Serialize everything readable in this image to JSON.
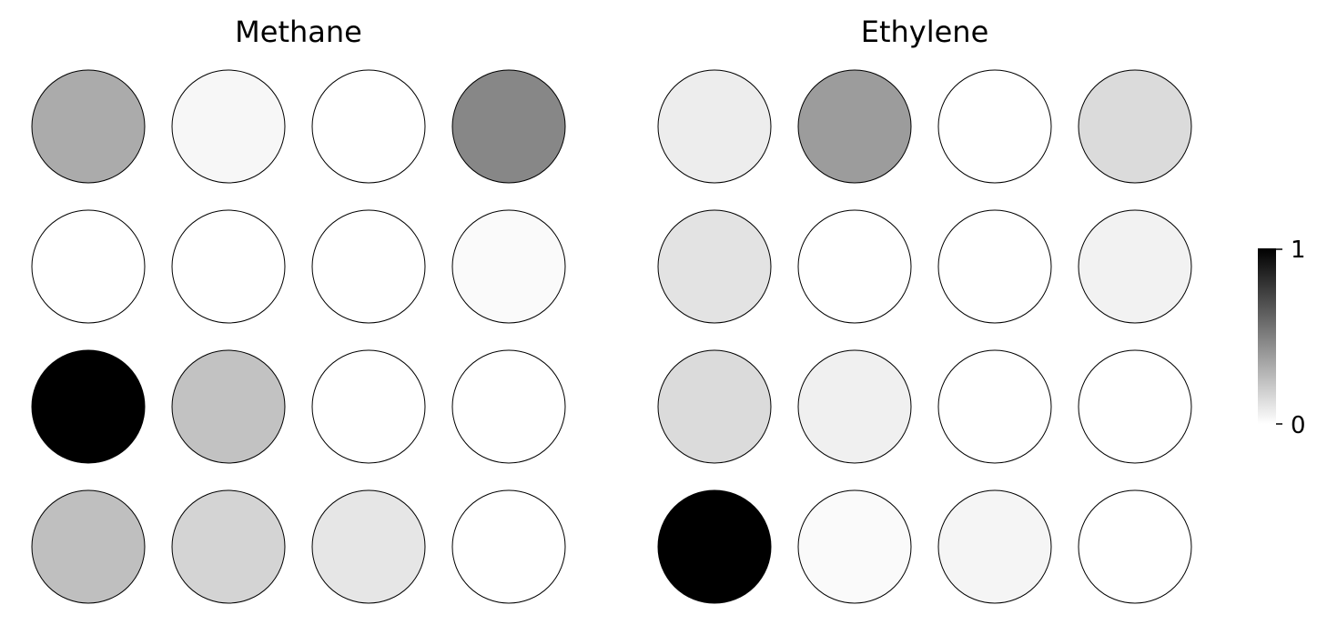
{
  "chart_data": {
    "type": "heatmap",
    "colormap": "greys",
    "colorbar": {
      "min": 0,
      "max": 1,
      "ticks": [
        0,
        1
      ],
      "tick_labels": [
        "0",
        "1"
      ],
      "colors": {
        "low": "#ffffff",
        "high": "#000000"
      }
    },
    "panels": [
      {
        "title": "Methane",
        "rows": 4,
        "cols": 4,
        "values": [
          [
            0.33,
            0.03,
            0.0,
            0.47
          ],
          [
            0.0,
            0.0,
            0.0,
            0.02
          ],
          [
            1.0,
            0.24,
            0.0,
            0.0
          ],
          [
            0.25,
            0.17,
            0.1,
            0.0
          ]
        ]
      },
      {
        "title": "Ethylene",
        "rows": 4,
        "cols": 4,
        "values": [
          [
            0.07,
            0.39,
            0.0,
            0.14
          ],
          [
            0.11,
            0.0,
            0.0,
            0.05
          ],
          [
            0.14,
            0.06,
            0.0,
            0.0
          ],
          [
            1.0,
            0.02,
            0.04,
            0.0
          ]
        ]
      }
    ]
  }
}
